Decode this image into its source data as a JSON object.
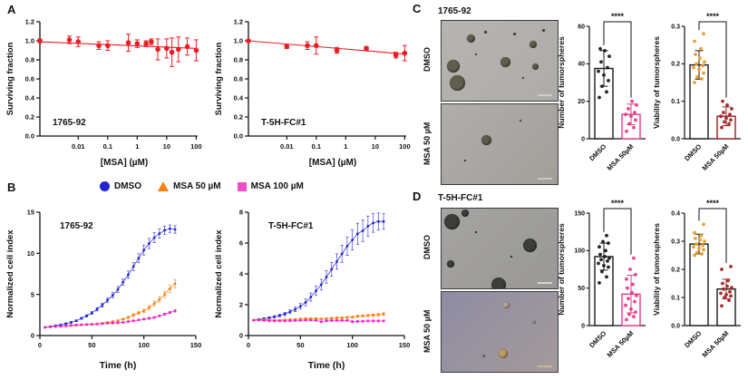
{
  "figure": {
    "panelA": {
      "label": "A",
      "ylabel": "Surviving fraction",
      "xlabel": "[MSA] (µM)"
    },
    "panelB": {
      "label": "B",
      "ylabel": "Normalized cell index",
      "xlabel": "Time (h)",
      "legend": [
        {
          "label": "DMSO",
          "shape": "circle",
          "color": "#2323d2"
        },
        {
          "label": "MSA 50 µM",
          "shape": "triangle",
          "color": "#f8800f"
        },
        {
          "label": "MSA 100 µM",
          "shape": "square",
          "color": "#ee4fc6"
        }
      ]
    },
    "panelC": {
      "label": "C",
      "title": "1765-92",
      "image_labels": [
        "DMSO",
        "MSA 50 µM"
      ]
    },
    "panelD": {
      "label": "D",
      "title": "T-5H-FC#1",
      "image_labels": [
        "DMSO",
        "MSA 50 µM"
      ]
    }
  },
  "chart_data": [
    {
      "id": "A1",
      "type": "scatter",
      "xscale": "log",
      "title": "1765-92",
      "xlabel": "[MSA] (µM)",
      "ylabel": "Surviving fraction",
      "color": "#ed1c24",
      "xlog": [
        -3.3,
        2.05
      ],
      "ylim": [
        0,
        1.2
      ],
      "yticks": [
        0,
        0.2,
        0.4,
        0.6,
        0.8,
        1.0,
        1.2
      ],
      "ytick_labels": [
        "0.0",
        "0.2",
        "0.4",
        "0.6",
        "0.8",
        "1.0",
        "1.2"
      ],
      "xticks": [
        0.01,
        0.1,
        1,
        10,
        100
      ],
      "xtick_labels": [
        "0.01",
        "0.1",
        "1",
        "10",
        "100"
      ],
      "x": [
        0.0005,
        0.005,
        0.01,
        0.05,
        0.1,
        0.5,
        1,
        2,
        3,
        5,
        10,
        15,
        25,
        50,
        100
      ],
      "y": [
        1.0,
        1.01,
        0.99,
        0.95,
        0.95,
        0.98,
        0.97,
        0.97,
        0.99,
        0.91,
        0.92,
        0.88,
        0.91,
        0.94,
        0.9
      ],
      "err": [
        0.02,
        0.04,
        0.05,
        0.04,
        0.05,
        0.09,
        0.04,
        0.03,
        0.03,
        0.11,
        0.1,
        0.15,
        0.13,
        0.09,
        0.11
      ],
      "fit": [
        0.99,
        0.92
      ]
    },
    {
      "id": "A2",
      "type": "scatter",
      "xscale": "log",
      "title": "T-5H-FC#1",
      "xlabel": "[MSA] (µM)",
      "ylabel": "Surviving fraction",
      "color": "#ed1c24",
      "xlog": [
        -3.3,
        2.05
      ],
      "ylim": [
        0,
        1.2
      ],
      "yticks": [
        0,
        0.2,
        0.4,
        0.6,
        0.8,
        1.0,
        1.2
      ],
      "ytick_labels": [
        "0.0",
        "0.2",
        "0.4",
        "0.6",
        "0.8",
        "1.0",
        "1.2"
      ],
      "xticks": [
        0.01,
        0.1,
        1,
        10,
        100
      ],
      "xtick_labels": [
        "0.01",
        "0.1",
        "1",
        "10",
        "100"
      ],
      "x": [
        0.0005,
        0.01,
        0.05,
        0.1,
        0.5,
        5,
        50,
        100
      ],
      "y": [
        1.0,
        0.94,
        0.95,
        0.95,
        0.9,
        0.92,
        0.85,
        0.87
      ],
      "err": [
        0.01,
        0.02,
        0.04,
        0.09,
        0.03,
        0.02,
        0.03,
        0.08
      ],
      "fit": [
        1.0,
        0.86
      ]
    },
    {
      "id": "B1",
      "type": "line",
      "title": "1765-92",
      "xlabel": "Time (h)",
      "ylabel": "Normalized cell index",
      "xlim": [
        0,
        150
      ],
      "xticks": [
        0,
        50,
        100,
        150
      ],
      "xtick_labels": [
        "0",
        "50",
        "100",
        "150"
      ],
      "ylim": [
        0,
        15
      ],
      "yticks": [
        0,
        5,
        10,
        15
      ],
      "ytick_labels": [
        "0",
        "5",
        "10",
        "15"
      ],
      "x": [
        5,
        10,
        15,
        20,
        25,
        30,
        35,
        40,
        45,
        50,
        55,
        60,
        65,
        70,
        75,
        80,
        85,
        90,
        95,
        100,
        105,
        110,
        115,
        120,
        125,
        130
      ],
      "series": [
        {
          "name": "DMSO",
          "color": "#2323d2",
          "values": [
            1.0,
            1.1,
            1.2,
            1.3,
            1.45,
            1.6,
            1.8,
            2.1,
            2.4,
            2.75,
            3.2,
            3.7,
            4.3,
            4.9,
            5.6,
            6.5,
            7.4,
            8.4,
            9.4,
            10.4,
            11.2,
            11.9,
            12.4,
            12.8,
            13.0,
            12.9
          ],
          "err": [
            0.05,
            0.05,
            0.06,
            0.07,
            0.08,
            0.09,
            0.1,
            0.12,
            0.14,
            0.16,
            0.2,
            0.24,
            0.28,
            0.32,
            0.36,
            0.4,
            0.45,
            0.5,
            0.55,
            0.6,
            0.62,
            0.6,
            0.55,
            0.5,
            0.45,
            0.45
          ]
        },
        {
          "name": "MSA 50 µM",
          "color": "#f8800f",
          "values": [
            1.0,
            1.05,
            1.1,
            1.12,
            1.15,
            1.2,
            1.25,
            1.3,
            1.32,
            1.35,
            1.42,
            1.5,
            1.6,
            1.7,
            1.8,
            2.0,
            2.2,
            2.5,
            2.75,
            3.0,
            3.4,
            3.9,
            4.4,
            5.0,
            5.7,
            6.3
          ],
          "err": [
            0.03,
            0.03,
            0.04,
            0.04,
            0.05,
            0.05,
            0.06,
            0.06,
            0.07,
            0.07,
            0.08,
            0.08,
            0.09,
            0.1,
            0.11,
            0.12,
            0.14,
            0.16,
            0.18,
            0.2,
            0.24,
            0.28,
            0.33,
            0.38,
            0.45,
            0.5
          ]
        },
        {
          "name": "MSA 100 µM",
          "color": "#ee22c8",
          "values": [
            1.0,
            1.05,
            1.1,
            1.15,
            1.2,
            1.25,
            1.3,
            1.32,
            1.35,
            1.38,
            1.4,
            1.45,
            1.5,
            1.52,
            1.55,
            1.6,
            1.7,
            1.8,
            1.9,
            2.0,
            2.1,
            2.2,
            2.4,
            2.6,
            2.8,
            3.0
          ],
          "err": [
            0.03,
            0.03,
            0.03,
            0.04,
            0.04,
            0.04,
            0.05,
            0.05,
            0.05,
            0.05,
            0.06,
            0.06,
            0.06,
            0.07,
            0.07,
            0.07,
            0.08,
            0.08,
            0.09,
            0.09,
            0.1,
            0.1,
            0.11,
            0.12,
            0.13,
            0.15
          ]
        }
      ]
    },
    {
      "id": "B2",
      "type": "line",
      "title": "T-5H-FC#1",
      "xlabel": "Time (h)",
      "ylabel": "Normalized cell index",
      "xlim": [
        0,
        150
      ],
      "xticks": [
        0,
        50,
        100,
        150
      ],
      "xtick_labels": [
        "0",
        "50",
        "100",
        "150"
      ],
      "ylim": [
        0,
        8
      ],
      "yticks": [
        0,
        2,
        4,
        6,
        8
      ],
      "ytick_labels": [
        "0",
        "2",
        "4",
        "6",
        "8"
      ],
      "x": [
        5,
        10,
        15,
        20,
        25,
        30,
        35,
        40,
        45,
        50,
        55,
        60,
        65,
        70,
        75,
        80,
        85,
        90,
        95,
        100,
        105,
        110,
        115,
        120,
        125,
        130
      ],
      "series": [
        {
          "name": "DMSO",
          "color": "#2323d2",
          "values": [
            1.0,
            1.05,
            1.1,
            1.15,
            1.22,
            1.3,
            1.4,
            1.55,
            1.7,
            1.9,
            2.15,
            2.5,
            2.9,
            3.3,
            3.8,
            4.3,
            4.8,
            5.3,
            5.8,
            6.2,
            6.6,
            6.8,
            7.1,
            7.3,
            7.4,
            7.4
          ],
          "err": [
            0.03,
            0.04,
            0.05,
            0.06,
            0.07,
            0.08,
            0.1,
            0.12,
            0.15,
            0.18,
            0.22,
            0.26,
            0.3,
            0.35,
            0.4,
            0.45,
            0.5,
            0.55,
            0.6,
            0.65,
            0.68,
            0.7,
            0.65,
            0.6,
            0.55,
            0.5
          ]
        },
        {
          "name": "MSA 50 µM",
          "color": "#f8800f",
          "values": [
            1.0,
            1.02,
            1.03,
            1.02,
            1.0,
            1.0,
            1.02,
            1.05,
            1.05,
            1.08,
            1.1,
            1.1,
            1.1,
            1.08,
            1.1,
            1.12,
            1.15,
            1.15,
            1.18,
            1.2,
            1.25,
            1.28,
            1.3,
            1.32,
            1.35,
            1.4
          ],
          "err": [
            0.02,
            0.02,
            0.03,
            0.03,
            0.03,
            0.03,
            0.04,
            0.04,
            0.04,
            0.04,
            0.05,
            0.05,
            0.05,
            0.05,
            0.05,
            0.06,
            0.06,
            0.06,
            0.06,
            0.07,
            0.07,
            0.07,
            0.08,
            0.08,
            0.08,
            0.08
          ]
        },
        {
          "name": "MSA 100 µM",
          "color": "#ee22c8",
          "values": [
            1.0,
            1.0,
            0.98,
            0.95,
            0.95,
            0.95,
            0.95,
            0.95,
            0.97,
            0.98,
            1.0,
            1.0,
            0.98,
            0.9,
            0.95,
            0.97,
            0.98,
            0.98,
            0.98,
            0.9,
            0.92,
            0.93,
            0.95,
            0.95,
            0.95,
            0.95
          ],
          "err": [
            0.02,
            0.02,
            0.02,
            0.03,
            0.03,
            0.03,
            0.03,
            0.03,
            0.04,
            0.04,
            0.04,
            0.04,
            0.04,
            0.05,
            0.05,
            0.05,
            0.05,
            0.05,
            0.05,
            0.06,
            0.06,
            0.06,
            0.06,
            0.06,
            0.06,
            0.06
          ]
        }
      ]
    },
    {
      "id": "C1",
      "type": "bar",
      "ylabel": "Number of tumorspheres",
      "sig": "****",
      "ylim": [
        0,
        60
      ],
      "yticks": [
        0,
        20,
        40,
        60
      ],
      "ytick_labels": [
        "0",
        "20",
        "40",
        "60"
      ],
      "categories": [
        "DMSO",
        "MSA 50µM"
      ],
      "bars": [
        {
          "value": 37.5,
          "err": 9.5,
          "bar_color": "#1a1a1a",
          "dot_color": "#1a1a1a",
          "err_color": "#1a1a1a",
          "dots": [
            22,
            25,
            28,
            31,
            34,
            36,
            38,
            41,
            44,
            47,
            48
          ]
        },
        {
          "value": 13,
          "err": 5.5,
          "bar_color": "#e83a87",
          "dot_color": "#e83a87",
          "err_color": "#e83a87",
          "dots": [
            4,
            6,
            8,
            10,
            12,
            13,
            14,
            16,
            18,
            20
          ]
        }
      ]
    },
    {
      "id": "C2",
      "type": "bar",
      "ylabel": "Viability of tumorspheres",
      "sig": "****",
      "ylim": [
        0,
        0.3
      ],
      "yticks": [
        0,
        0.1,
        0.2,
        0.3
      ],
      "ytick_labels": [
        "0.0",
        "0.1",
        "0.2",
        "0.3"
      ],
      "categories": [
        "DMSO",
        "MSA 50µM"
      ],
      "bars": [
        {
          "value": 0.197,
          "err": 0.038,
          "bar_color": "#1a1a1a",
          "dot_color": "#eb9b28",
          "err_color": "#1a1a1a",
          "dots": [
            0.15,
            0.16,
            0.165,
            0.175,
            0.185,
            0.19,
            0.195,
            0.2,
            0.205,
            0.215,
            0.225,
            0.24,
            0.26,
            0.28
          ]
        },
        {
          "value": 0.06,
          "err": 0.025,
          "bar_color": "#9b1b1b",
          "dot_color": "#a32424",
          "err_color": "#9b1b1b",
          "dots": [
            0.03,
            0.04,
            0.045,
            0.05,
            0.055,
            0.06,
            0.065,
            0.07,
            0.08,
            0.09,
            0.1
          ]
        }
      ]
    },
    {
      "id": "D1",
      "type": "bar",
      "ylabel": "Number of tumorspheres",
      "sig": "****",
      "ylim": [
        0,
        150
      ],
      "yticks": [
        0,
        50,
        100,
        150
      ],
      "ytick_labels": [
        "0",
        "50",
        "100",
        "150"
      ],
      "categories": [
        "DMSO",
        "MSA 50µM"
      ],
      "bars": [
        {
          "value": 92,
          "err": 18,
          "bar_color": "#1a1a1a",
          "dot_color": "#1a1a1a",
          "err_color": "#1a1a1a",
          "dots": [
            57,
            65,
            72,
            78,
            80,
            83,
            86,
            88,
            90,
            92,
            95,
            100,
            105,
            110,
            112,
            120
          ]
        },
        {
          "value": 42,
          "err": 25,
          "bar_color": "#e83a87",
          "dot_color": "#e83a87",
          "err_color": "#e83a87",
          "dots": [
            8,
            12,
            15,
            18,
            22,
            27,
            32,
            36,
            40,
            44,
            50,
            55,
            62,
            68,
            75,
            90
          ]
        }
      ]
    },
    {
      "id": "D2",
      "type": "bar",
      "ylabel": "Viability of tumorspheres",
      "sig": "****",
      "ylim": [
        0,
        0.4
      ],
      "yticks": [
        0,
        0.1,
        0.2,
        0.3,
        0.4
      ],
      "ytick_labels": [
        "0.0",
        "0.1",
        "0.2",
        "0.3",
        "0.4"
      ],
      "categories": [
        "DMSO",
        "MSA 50µM"
      ],
      "bars": [
        {
          "value": 0.29,
          "err": 0.035,
          "bar_color": "#1a1a1a",
          "dot_color": "#eb9b28",
          "err_color": "#1a1a1a",
          "dots": [
            0.25,
            0.255,
            0.26,
            0.27,
            0.275,
            0.28,
            0.285,
            0.29,
            0.3,
            0.305,
            0.31,
            0.32,
            0.33,
            0.36
          ]
        },
        {
          "value": 0.13,
          "err": 0.035,
          "bar_color": "#1a1a1a",
          "dot_color": "#a32424",
          "err_color": "#a32424",
          "dots": [
            0.07,
            0.09,
            0.1,
            0.105,
            0.11,
            0.115,
            0.12,
            0.13,
            0.135,
            0.14,
            0.15,
            0.16,
            0.2,
            0.21
          ]
        }
      ]
    }
  ],
  "images": {
    "C_DMSO": {
      "bg": "#b6b4b0",
      "bg2": "#aeaca8",
      "sphere_color": "#615e4d",
      "scalebar": "#cfcdc5",
      "spheres": [
        [
          25,
          22,
          9
        ],
        [
          10,
          57,
          14
        ],
        [
          14,
          78,
          17
        ],
        [
          55,
          52,
          11
        ],
        [
          79,
          29,
          8
        ],
        [
          81,
          57,
          7
        ],
        [
          38,
          14,
          3
        ],
        [
          63,
          17,
          3
        ],
        [
          30,
          42,
          2
        ],
        [
          70,
          72,
          2
        ],
        [
          88,
          12,
          3
        ]
      ]
    },
    "C_MSA": {
      "bg": "#b0aeaa",
      "bg2": "#a29f9b",
      "sphere_color": "#5e5b4c",
      "scalebar": "#c9c7bf",
      "spheres": [
        [
          39,
          45,
          11
        ],
        [
          68,
          20,
          2
        ],
        [
          20,
          70,
          2
        ]
      ]
    },
    "D_DMSO": {
      "bg": "#a5a4a2",
      "bg2": "#999896",
      "sphere_color": "#3d3d3b",
      "scalebar": "#d8d6ce",
      "spheres": [
        [
          9,
          16,
          17
        ],
        [
          20,
          6,
          8
        ],
        [
          76,
          46,
          15
        ],
        [
          8,
          69,
          8
        ],
        [
          49,
          95,
          16
        ],
        [
          30,
          30,
          2
        ],
        [
          60,
          60,
          2
        ]
      ]
    },
    "D_MSA": {
      "bg": "#8f8ca4",
      "bg2": "#a39b9a",
      "sphere_color": "#b9ad99",
      "scalebar": "#c9b992",
      "spheres": [
        [
          56,
          16,
          7,
          "#b9ad99"
        ],
        [
          53,
          77,
          10,
          "#c29a66"
        ],
        [
          80,
          38,
          4,
          "#a9a5b2"
        ],
        [
          36,
          80,
          3,
          "#9d99a9"
        ]
      ]
    }
  }
}
